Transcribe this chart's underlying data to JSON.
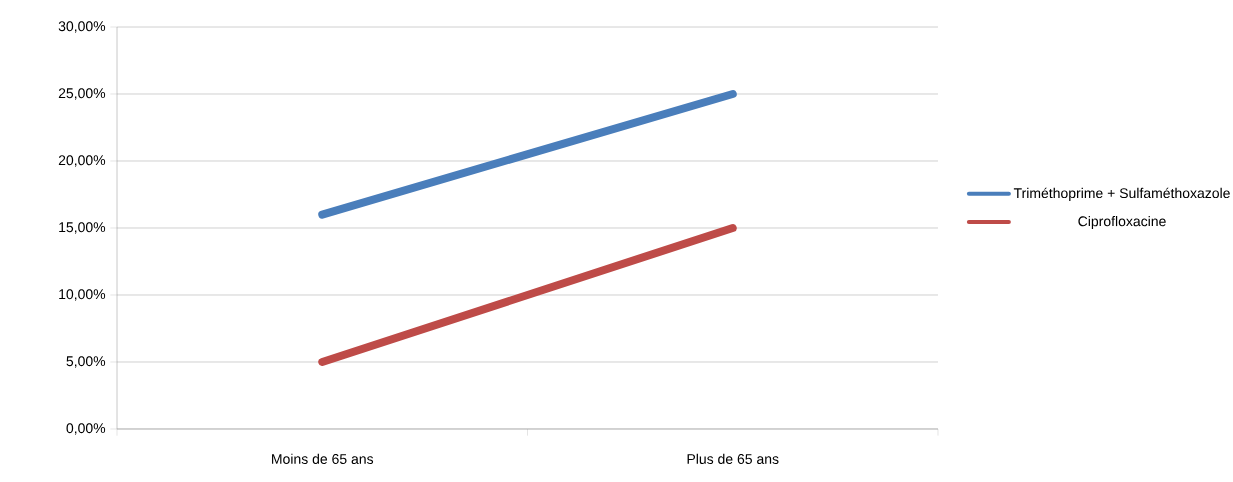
{
  "chart_data": {
    "type": "line",
    "categories": [
      "Moins de 65 ans",
      "Plus de 65 ans"
    ],
    "series": [
      {
        "name": "Triméthoprime + Sulfaméthoxazole",
        "color": "#4a7ebb",
        "values": [
          16,
          25
        ]
      },
      {
        "name": "Ciprofloxacine",
        "color": "#be4b48",
        "values": [
          5,
          15
        ]
      }
    ],
    "ylim": [
      0,
      30
    ],
    "yticks": [
      {
        "value": 0,
        "label": "0,00%"
      },
      {
        "value": 5,
        "label": "5,00%"
      },
      {
        "value": 10,
        "label": "10,00%"
      },
      {
        "value": 15,
        "label": "15,00%"
      },
      {
        "value": 20,
        "label": "20,00%"
      },
      {
        "value": 25,
        "label": "25,00%"
      },
      {
        "value": 30,
        "label": "30,00%"
      }
    ],
    "grid": "y",
    "legend": "right"
  }
}
